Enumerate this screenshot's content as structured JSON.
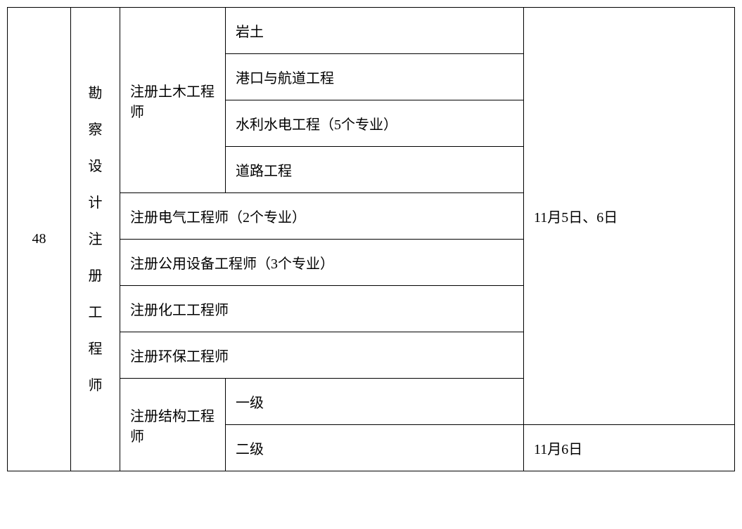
{
  "table": {
    "row_number": "48",
    "category": "勘察设计注册工程师",
    "civil_engineer": {
      "title": "注册土木工程师",
      "specs": [
        "岩土",
        "港口与航道工程",
        "水利水电工程（5个专业）",
        "道路工程"
      ]
    },
    "single_rows": [
      "注册电气工程师（2个专业）",
      "注册公用设备工程师（3个专业）",
      "注册化工工程师",
      "注册环保工程师"
    ],
    "structural_engineer": {
      "title": "注册结构工程师",
      "levels": [
        "一级",
        "二级"
      ]
    },
    "dates": {
      "main": "11月5日、6日",
      "secondary": "11月6日"
    }
  },
  "styling": {
    "border_color": "#000000",
    "background_color": "#ffffff",
    "text_color": "#000000",
    "font_size": 20,
    "cell_padding_v": 18,
    "cell_padding_h": 14,
    "col_widths": {
      "num": 90,
      "category": 70,
      "type": 150,
      "date": 300
    }
  }
}
